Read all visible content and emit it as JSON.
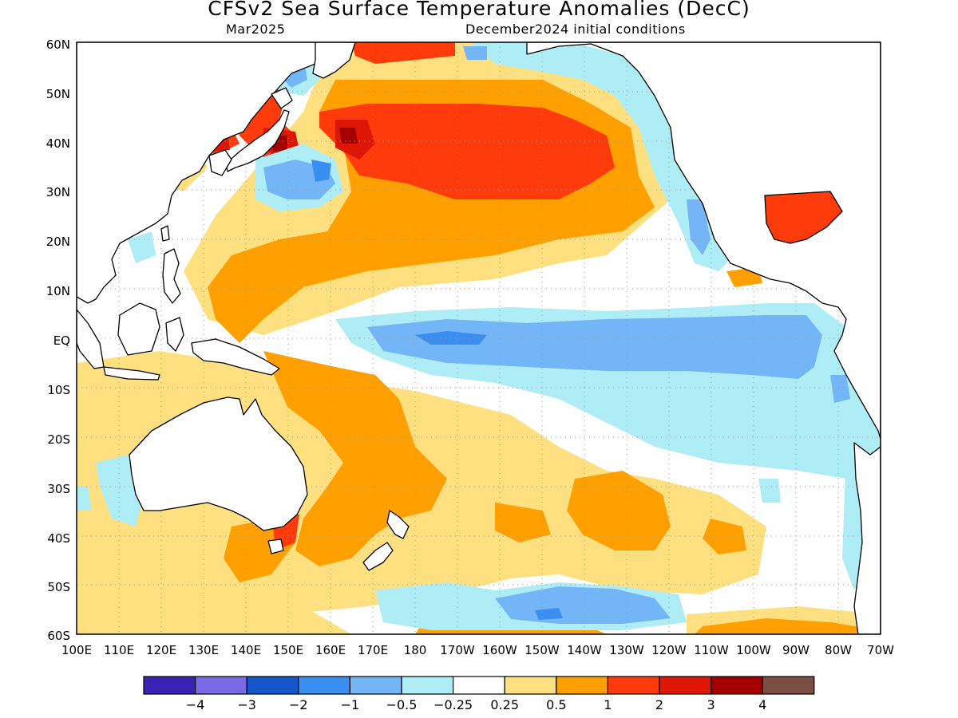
{
  "title": "CFSv2 Sea Surface Temperature Anomalies (DecC)",
  "valid_month": "Mar2025",
  "init_conditions": "December2024 initial conditions",
  "map": {
    "lat_labels": [
      "60N",
      "50N",
      "40N",
      "30N",
      "20N",
      "10N",
      "EQ",
      "10S",
      "20S",
      "30S",
      "40S",
      "50S",
      "60S"
    ],
    "lon_labels": [
      "100E",
      "110E",
      "120E",
      "130E",
      "140E",
      "150E",
      "160E",
      "170E",
      "180",
      "170W",
      "160W",
      "150W",
      "140W",
      "130W",
      "120W",
      "110W",
      "100W",
      "90W",
      "80W",
      "70W"
    ],
    "lat_range": [
      -60,
      60
    ],
    "lon_range": [
      "100E",
      "70W"
    ],
    "grid": "dotted"
  },
  "colorbar": {
    "colors": [
      "#3a22b4",
      "#7b6ae6",
      "#1556c8",
      "#3a8ef0",
      "#73b5f6",
      "#aeecf6",
      "#ffffff",
      "#ffe080",
      "#ffa000",
      "#ff3b0c",
      "#de1606",
      "#a40000",
      "#7a4e43"
    ],
    "labels": [
      "−4",
      "−3",
      "−2",
      "−1",
      "−0.5",
      "−0.25",
      "0.25",
      "0.5",
      "1",
      "2",
      "3",
      "4"
    ]
  }
}
